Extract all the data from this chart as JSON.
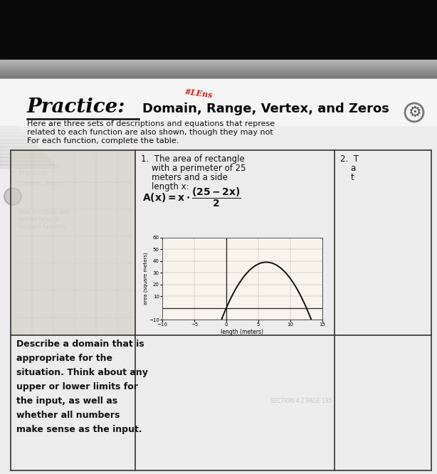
{
  "bg_top_color": "#111111",
  "bg_shadow_color": "#333333",
  "paper_color": "#e8e8e8",
  "paper_light": "#f0f0f0",
  "table_line_color": "#444444",
  "text_color": "#111111",
  "red_annotation": "#LEns",
  "red_color": "#cc1111",
  "title_cursive": "Practice:",
  "title_rest": "Domain, Range, Vertex, and Zeros",
  "header_line1": "Here are three sets of descriptions and equations that represe",
  "header_line2": "related to each function are also shown, though they may not",
  "header_line3": "For each function, complete the table.",
  "problem1_lines": [
    "1.  The area of rectangle",
    "    with a perimeter of 25",
    "    meters and a side",
    "    length x:"
  ],
  "col3_lines": [
    "2.  T",
    "    a",
    "    t"
  ],
  "domain_text_lines": [
    "Describe a domain that is",
    "appropriate for the",
    "situation. Think about any",
    "upper or lower limits for",
    "the input, as well as",
    "whether all numbers",
    "make sense as the input."
  ],
  "graph_xlabel": "length (meters)",
  "graph_ylabel": "area (square meters)",
  "graph_xlim": [
    -10,
    15
  ],
  "graph_ylim": [
    -10,
    60
  ],
  "graph_xticks": [
    -10,
    -5,
    0,
    5,
    10,
    15
  ],
  "graph_yticks": [
    -10,
    10,
    20,
    30,
    40,
    50,
    60
  ],
  "watermark": "SECTION 4.2 PAGE 185",
  "gear_color": "#555555"
}
